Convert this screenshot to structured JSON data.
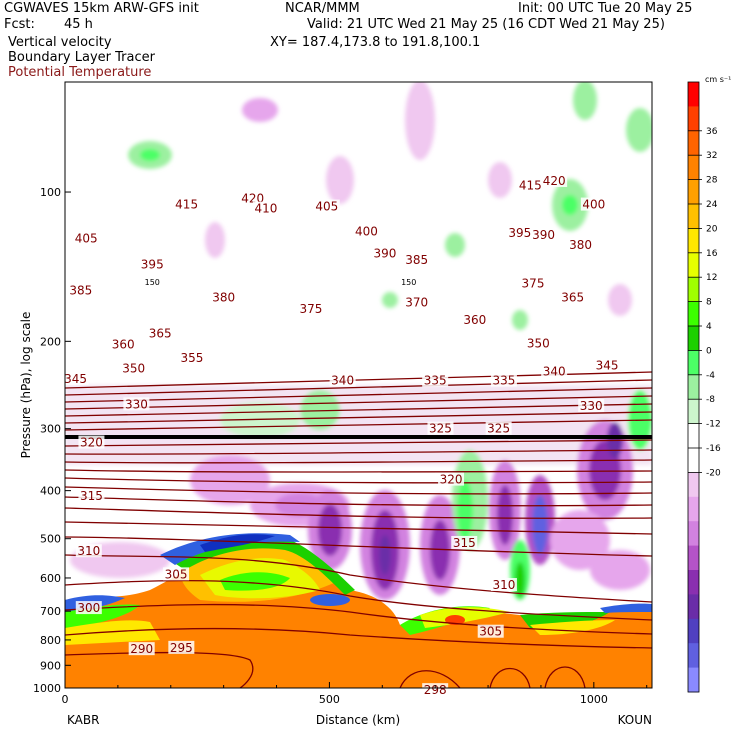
{
  "header": {
    "model": "CGWAVES 15km ARW-GFS init",
    "org": "NCAR/MMM",
    "init": "Init: 00 UTC Tue 20 May 25",
    "fcst_label": "Fcst:",
    "fcst_value": "45 h",
    "valid": "Valid: 21 UTC Wed 21 May 25 (16 CDT Wed 21 May 25)",
    "field1": "Vertical velocity",
    "field2": "Boundary Layer Tracer",
    "field3": "Potential Temperature",
    "xy": "XY= 187.4,173.8 to 191.8,100.1"
  },
  "chart_data": {
    "type": "heatmap",
    "title": "",
    "xlabel": "Distance (km)",
    "ylabel": "Pressure (hPa), log scale",
    "xlim": [
      0,
      1110
    ],
    "ylim": [
      1000,
      60
    ],
    "yscale": "log",
    "x_ticks": [
      0,
      500,
      1000
    ],
    "y_ticks": [
      100,
      200,
      300,
      400,
      500,
      600,
      700,
      800,
      900,
      1000
    ],
    "left_endpoint": "KABR",
    "right_endpoint": "KOUN",
    "colorbar": {
      "unit": "cm s⁻¹",
      "ticks": [
        36,
        32,
        28,
        24,
        20,
        16,
        12,
        8,
        4,
        0,
        -4,
        -8,
        -12,
        -16,
        -20
      ],
      "colors": [
        "#ff0000",
        "#ff4000",
        "#ff6400",
        "#ff8200",
        "#ffa000",
        "#ffc000",
        "#ffe800",
        "#e6ff00",
        "#a0ff00",
        "#3cff00",
        "#1cd000",
        "#4cff66",
        "#9cf0a0",
        "#cdf5cd",
        "#ffffff",
        "#ffffff",
        "#f0c8f0",
        "#e6a6ec",
        "#d282e0",
        "#b453c8",
        "#8a2fb0",
        "#6a2da8",
        "#5040c0",
        "#6060e0",
        "#8a8aff"
      ]
    },
    "potential_temperature_labels": [
      {
        "x": 230,
        "p": 106,
        "v": "415"
      },
      {
        "x": 355,
        "p": 103,
        "v": "420"
      },
      {
        "x": 40,
        "p": 124,
        "v": "405"
      },
      {
        "x": 165,
        "p": 140,
        "v": "395"
      },
      {
        "x": 380,
        "p": 108,
        "v": "410"
      },
      {
        "x": 570,
        "p": 120,
        "v": "400"
      },
      {
        "x": 495,
        "p": 107,
        "v": "405"
      },
      {
        "x": 605,
        "p": 133,
        "v": "390"
      },
      {
        "x": 665,
        "p": 137,
        "v": "385"
      },
      {
        "x": 880,
        "p": 97,
        "v": "415"
      },
      {
        "x": 925,
        "p": 95,
        "v": "420"
      },
      {
        "x": 860,
        "p": 121,
        "v": "395"
      },
      {
        "x": 905,
        "p": 122,
        "v": "390"
      },
      {
        "x": 1000,
        "p": 106,
        "v": "400"
      },
      {
        "x": 975,
        "p": 128,
        "v": "380"
      },
      {
        "x": 30,
        "p": 158,
        "v": "385"
      },
      {
        "x": 300,
        "p": 163,
        "v": "380"
      },
      {
        "x": 465,
        "p": 172,
        "v": "375"
      },
      {
        "x": 665,
        "p": 167,
        "v": "370"
      },
      {
        "x": 775,
        "p": 181,
        "v": "360"
      },
      {
        "x": 885,
        "p": 153,
        "v": "375"
      },
      {
        "x": 960,
        "p": 163,
        "v": "365"
      },
      {
        "x": 180,
        "p": 193,
        "v": "365"
      },
      {
        "x": 130,
        "p": 227,
        "v": "350"
      },
      {
        "x": 240,
        "p": 216,
        "v": "355"
      },
      {
        "x": 110,
        "p": 203,
        "v": "360"
      },
      {
        "x": 20,
        "p": 238,
        "v": "345"
      },
      {
        "x": 135,
        "p": 268,
        "v": "330"
      },
      {
        "x": 525,
        "p": 240,
        "v": "340"
      },
      {
        "x": 700,
        "p": 240,
        "v": "335"
      },
      {
        "x": 830,
        "p": 240,
        "v": "335"
      },
      {
        "x": 895,
        "p": 202,
        "v": "350"
      },
      {
        "x": 925,
        "p": 230,
        "v": "340"
      },
      {
        "x": 1025,
        "p": 224,
        "v": "345"
      },
      {
        "x": 995,
        "p": 270,
        "v": "330"
      },
      {
        "x": 710,
        "p": 300,
        "v": "325"
      },
      {
        "x": 820,
        "p": 300,
        "v": "325"
      },
      {
        "x": 50,
        "p": 320,
        "v": "320"
      },
      {
        "x": 730,
        "p": 380,
        "v": "320"
      },
      {
        "x": 50,
        "p": 410,
        "v": "315"
      },
      {
        "x": 755,
        "p": 510,
        "v": "315"
      },
      {
        "x": 45,
        "p": 530,
        "v": "310"
      },
      {
        "x": 830,
        "p": 620,
        "v": "310"
      },
      {
        "x": 210,
        "p": 590,
        "v": "305"
      },
      {
        "x": 805,
        "p": 770,
        "v": "305"
      },
      {
        "x": 45,
        "p": 690,
        "v": "300"
      },
      {
        "x": 145,
        "p": 835,
        "v": "290"
      },
      {
        "x": 220,
        "p": 830,
        "v": "295"
      },
      {
        "x": 700,
        "p": 1010,
        "v": "298"
      }
    ],
    "tropopause_labels": [
      {
        "x": 165,
        "p": 152,
        "v": "150"
      },
      {
        "x": 650,
        "p": 152,
        "v": "150"
      }
    ]
  }
}
